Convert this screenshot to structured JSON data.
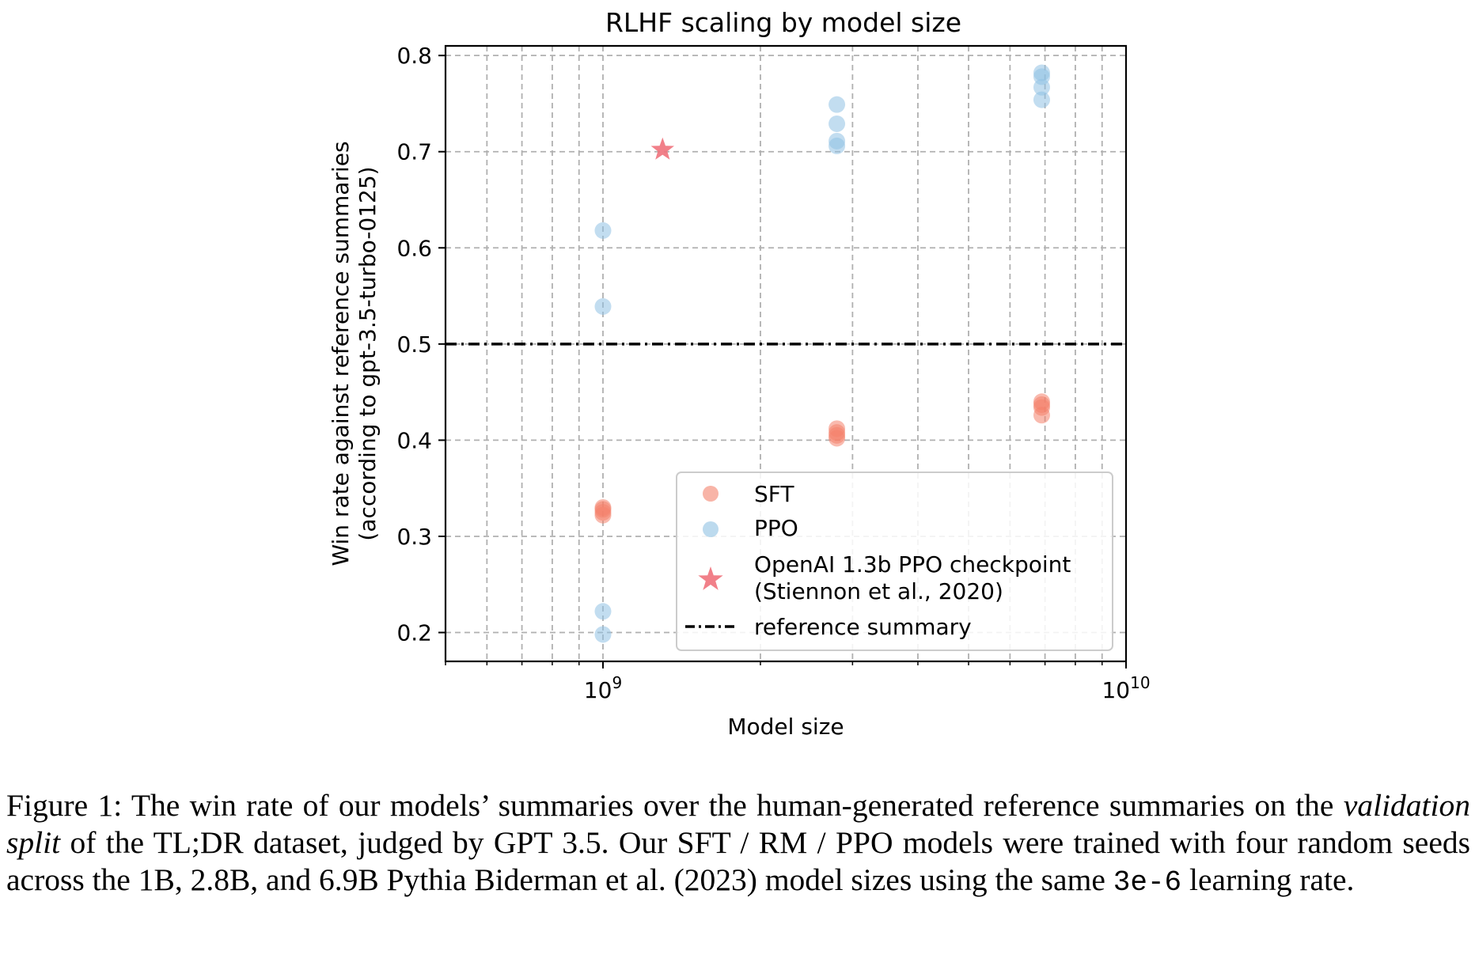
{
  "chart_data": {
    "type": "scatter",
    "title": "RLHF scaling by model size",
    "xlabel": "Model size",
    "ylabel_line1": "Win rate against reference summaries",
    "ylabel_line2": "(according to gpt-3.5-turbo-0125)",
    "xscale": "log",
    "xlim": [
      500000000,
      10000000000
    ],
    "ylim": [
      0.17,
      0.81
    ],
    "yticks": [
      0.2,
      0.3,
      0.4,
      0.5,
      0.6,
      0.7,
      0.8
    ],
    "ytick_labels": [
      "0.2",
      "0.3",
      "0.4",
      "0.5",
      "0.6",
      "0.7",
      "0.8"
    ],
    "xticks": [
      {
        "value": 1000000000,
        "base": "10",
        "exp": "9"
      },
      {
        "value": 10000000000,
        "base": "10",
        "exp": "10"
      }
    ],
    "grid": true,
    "legend_placement": "lower-right",
    "series": [
      {
        "name": "SFT",
        "color": "#f4826c",
        "points": [
          {
            "x": 1000000000,
            "y": 0.33
          },
          {
            "x": 1000000000,
            "y": 0.328
          },
          {
            "x": 1000000000,
            "y": 0.325
          },
          {
            "x": 1000000000,
            "y": 0.322
          },
          {
            "x": 2800000000,
            "y": 0.412
          },
          {
            "x": 2800000000,
            "y": 0.408
          },
          {
            "x": 2800000000,
            "y": 0.405
          },
          {
            "x": 2800000000,
            "y": 0.402
          },
          {
            "x": 6900000000,
            "y": 0.44
          },
          {
            "x": 6900000000,
            "y": 0.437
          },
          {
            "x": 6900000000,
            "y": 0.434
          },
          {
            "x": 6900000000,
            "y": 0.426
          }
        ]
      },
      {
        "name": "PPO",
        "color": "#8fc1e3",
        "points": [
          {
            "x": 1000000000,
            "y": 0.618
          },
          {
            "x": 1000000000,
            "y": 0.539
          },
          {
            "x": 1000000000,
            "y": 0.222
          },
          {
            "x": 1000000000,
            "y": 0.198
          },
          {
            "x": 2800000000,
            "y": 0.749
          },
          {
            "x": 2800000000,
            "y": 0.729
          },
          {
            "x": 2800000000,
            "y": 0.711
          },
          {
            "x": 2800000000,
            "y": 0.706
          },
          {
            "x": 6900000000,
            "y": 0.782
          },
          {
            "x": 6900000000,
            "y": 0.778
          },
          {
            "x": 6900000000,
            "y": 0.767
          },
          {
            "x": 6900000000,
            "y": 0.754
          }
        ]
      }
    ],
    "star": {
      "name_line1": "OpenAI 1.3b PPO checkpoint",
      "name_line2": "(Stiennon et al., 2020)",
      "color": "#f0727c",
      "x": 1300000000,
      "y": 0.702
    },
    "reference_line": {
      "name": "reference summary",
      "y": 0.5,
      "color": "#000000"
    }
  },
  "caption": {
    "prefix": "Figure 1: The win rate of our models’ summaries over the human-generated reference summaries on the ",
    "italic": "validation split",
    "middle": " of the TL;DR dataset, judged by GPT 3.5. Our SFT / RM / PPO models were trained with four random seeds across the 1B, 2.8B, and 6.9B Pythia Biderman et al. (2023) model sizes using the same ",
    "code": "3e-6",
    "suffix": " learning rate."
  }
}
